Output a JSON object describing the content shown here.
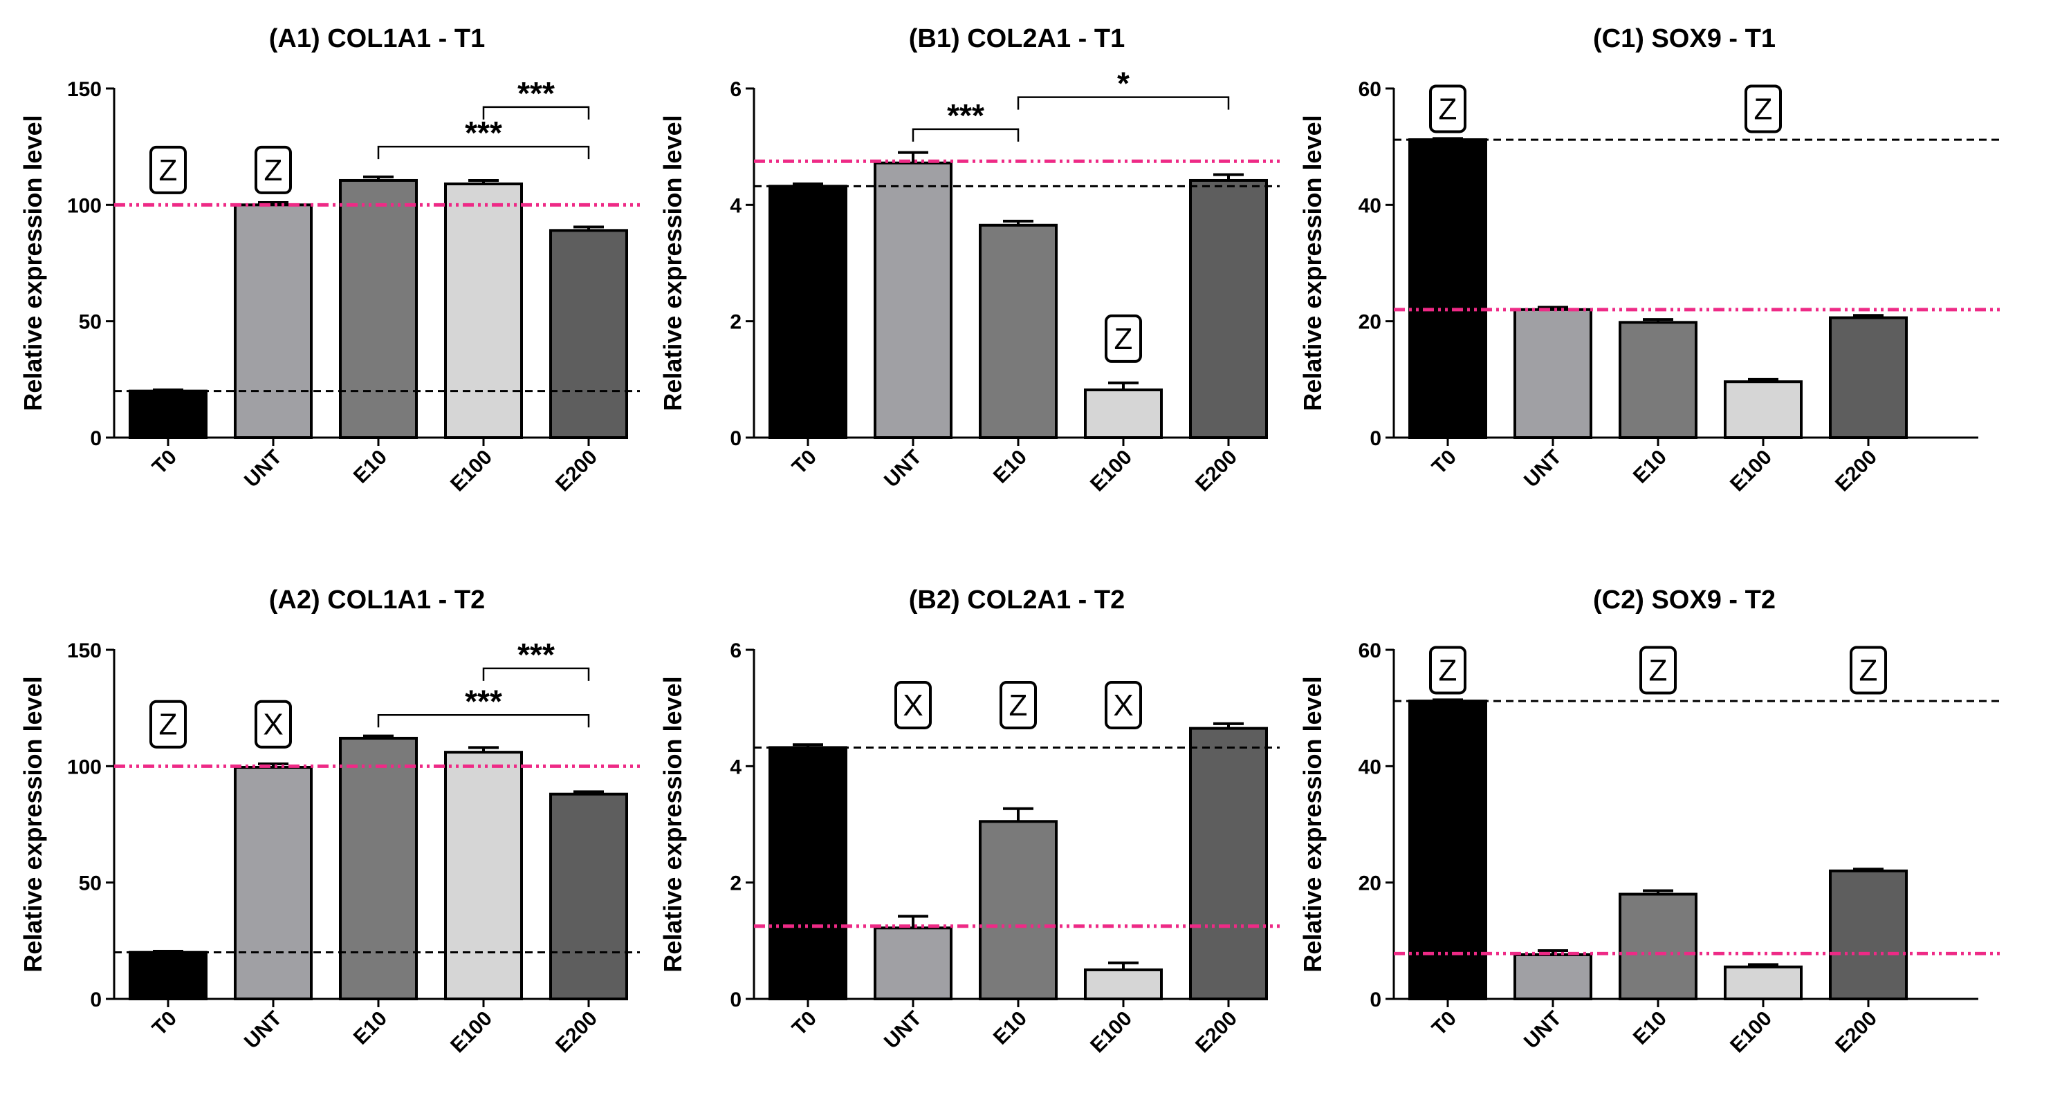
{
  "chart_data": [
    {
      "id": "A1",
      "type": "bar",
      "title": "(A1) COL1A1 - T1",
      "ylabel": "Relative expression level",
      "xlabel": "",
      "ylim": [
        0,
        150
      ],
      "yticks": [
        0,
        50,
        100,
        150
      ],
      "categories": [
        "T0",
        "UNT",
        "E10",
        "E100",
        "E200"
      ],
      "values": [
        20,
        100,
        110.5,
        109,
        89
      ],
      "errors": [
        0.5,
        1,
        1.5,
        1.5,
        1.5
      ],
      "colors": [
        "#000000",
        "#a0a0a4",
        "#7a7a7a",
        "#d6d6d6",
        "#5e5e5e"
      ],
      "ref_black": 20,
      "ref_pink": 100,
      "badges": [
        {
          "cat": 0,
          "label": "Z",
          "at": 115
        },
        {
          "cat": 1,
          "label": "Z",
          "at": 115
        }
      ],
      "sig": [
        {
          "from": 3,
          "to": 4,
          "y": 142,
          "label": "***"
        },
        {
          "from": 2,
          "to": 4,
          "y": 125,
          "label": "***"
        }
      ]
    },
    {
      "id": "B1",
      "type": "bar",
      "title": "(B1) COL2A1 - T1",
      "ylabel": "Relative expression level",
      "xlabel": "",
      "ylim": [
        0,
        6
      ],
      "yticks": [
        0,
        2,
        4,
        6
      ],
      "categories": [
        "T0",
        "UNT",
        "E10",
        "E100",
        "E200"
      ],
      "values": [
        4.32,
        4.72,
        3.65,
        0.82,
        4.42
      ],
      "errors": [
        0.04,
        0.18,
        0.07,
        0.12,
        0.1
      ],
      "colors": [
        "#000000",
        "#a0a0a4",
        "#7a7a7a",
        "#d6d6d6",
        "#5e5e5e"
      ],
      "ref_black": 4.32,
      "ref_pink": 4.75,
      "badges": [
        {
          "cat": 3,
          "label": "Z",
          "at": 1.7
        }
      ],
      "sig": [
        {
          "from": 1,
          "to": 2,
          "y": 5.3,
          "label": "***"
        },
        {
          "from": 2,
          "to": 4,
          "y": 5.85,
          "label": "*"
        }
      ]
    },
    {
      "id": "C1",
      "type": "bar",
      "title": "(C1) SOX9 - T1",
      "ylabel": "Relative expression level",
      "xlabel": "",
      "ylim": [
        0,
        60
      ],
      "yticks": [
        0,
        20,
        40,
        60
      ],
      "categories": [
        "T0",
        "UNT",
        "E10",
        "E100",
        "E200"
      ],
      "values": [
        51.2,
        22,
        19.8,
        9.6,
        20.6
      ],
      "errors": [
        0.2,
        0.4,
        0.5,
        0.4,
        0.4
      ],
      "colors": [
        "#000000",
        "#a0a0a4",
        "#7a7a7a",
        "#d6d6d6",
        "#5e5e5e"
      ],
      "ref_black": 51.2,
      "ref_pink": 22,
      "badges": [
        {
          "cat": 0,
          "label": "Z",
          "at": 56.5
        },
        {
          "cat": 3,
          "label": "Z",
          "at": 56.5
        }
      ],
      "sig": []
    },
    {
      "id": "A2",
      "type": "bar",
      "title": "(A2) COL1A1 - T2",
      "ylabel": "Relative expression level",
      "xlabel": "",
      "ylim": [
        0,
        150
      ],
      "yticks": [
        0,
        50,
        100,
        150
      ],
      "categories": [
        "T0",
        "UNT",
        "E10",
        "E100",
        "E200"
      ],
      "values": [
        20,
        99.5,
        112,
        106,
        88
      ],
      "errors": [
        0.5,
        1.5,
        1,
        2,
        1
      ],
      "colors": [
        "#000000",
        "#a0a0a4",
        "#7a7a7a",
        "#d6d6d6",
        "#5e5e5e"
      ],
      "ref_black": 20,
      "ref_pink": 100,
      "badges": [
        {
          "cat": 0,
          "label": "Z",
          "at": 118
        },
        {
          "cat": 1,
          "label": "X",
          "at": 118
        }
      ],
      "sig": [
        {
          "from": 3,
          "to": 4,
          "y": 142,
          "label": "***"
        },
        {
          "from": 2,
          "to": 4,
          "y": 122,
          "label": "***"
        }
      ]
    },
    {
      "id": "B2",
      "type": "bar",
      "title": "(B2) COL2A1 - T2",
      "ylabel": "Relative expression level",
      "xlabel": "",
      "ylim": [
        0,
        6
      ],
      "yticks": [
        0,
        2,
        4,
        6
      ],
      "categories": [
        "T0",
        "UNT",
        "E10",
        "E100",
        "E200"
      ],
      "values": [
        4.32,
        1.22,
        3.05,
        0.5,
        4.65
      ],
      "errors": [
        0.05,
        0.2,
        0.22,
        0.12,
        0.08
      ],
      "colors": [
        "#000000",
        "#a0a0a4",
        "#7a7a7a",
        "#d6d6d6",
        "#5e5e5e"
      ],
      "ref_black": 4.32,
      "ref_pink": 1.25,
      "badges": [
        {
          "cat": 1,
          "label": "X",
          "at": 5.05
        },
        {
          "cat": 2,
          "label": "Z",
          "at": 5.05
        },
        {
          "cat": 3,
          "label": "X",
          "at": 5.05
        }
      ],
      "sig": []
    },
    {
      "id": "C2",
      "type": "bar",
      "title": "(C2) SOX9 - T2",
      "ylabel": "Relative expression level",
      "xlabel": "",
      "ylim": [
        0,
        60
      ],
      "yticks": [
        0,
        20,
        40,
        60
      ],
      "categories": [
        "T0",
        "UNT",
        "E10",
        "E100",
        "E200"
      ],
      "values": [
        51.2,
        7.6,
        18,
        5.5,
        22
      ],
      "errors": [
        0.2,
        0.7,
        0.6,
        0.4,
        0.3
      ],
      "colors": [
        "#000000",
        "#a0a0a4",
        "#7a7a7a",
        "#d6d6d6",
        "#5e5e5e"
      ],
      "ref_black": 51.2,
      "ref_pink": 7.8,
      "badges": [
        {
          "cat": 0,
          "label": "Z",
          "at": 56.5
        },
        {
          "cat": 2,
          "label": "Z",
          "at": 56.5
        },
        {
          "cat": 4,
          "label": "Z",
          "at": 56.5
        }
      ],
      "sig": []
    }
  ]
}
